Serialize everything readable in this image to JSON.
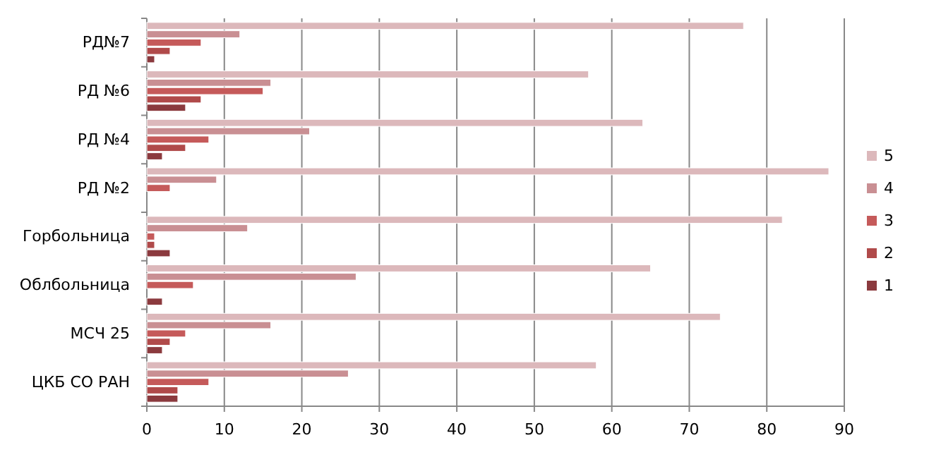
{
  "chart_data": {
    "type": "bar",
    "orientation": "horizontal",
    "categories": [
      "РД№7",
      "РД №6",
      "РД №4",
      "РД №2",
      "Горбольница",
      "Облбольница",
      "МСЧ 25",
      "ЦКБ СО РАН"
    ],
    "series": [
      {
        "name": "1",
        "color": "#8b3a3e",
        "values": [
          1,
          5,
          2,
          0,
          3,
          2,
          2,
          4
        ]
      },
      {
        "name": "2",
        "color": "#b04a4a",
        "values": [
          3,
          7,
          5,
          0,
          1,
          0,
          3,
          4
        ]
      },
      {
        "name": "3",
        "color": "#c55a5a",
        "values": [
          7,
          15,
          8,
          3,
          1,
          6,
          5,
          8
        ]
      },
      {
        "name": "4",
        "color": "#c98f93",
        "values": [
          12,
          16,
          21,
          9,
          13,
          27,
          16,
          26
        ]
      },
      {
        "name": "5",
        "color": "#dcb8bb",
        "values": [
          77,
          57,
          64,
          88,
          82,
          65,
          74,
          58
        ]
      }
    ],
    "xlim": [
      0,
      90
    ],
    "xticks": [
      0,
      10,
      20,
      30,
      40,
      50,
      60,
      70,
      80,
      90
    ],
    "grid": "x",
    "legend": "right"
  }
}
